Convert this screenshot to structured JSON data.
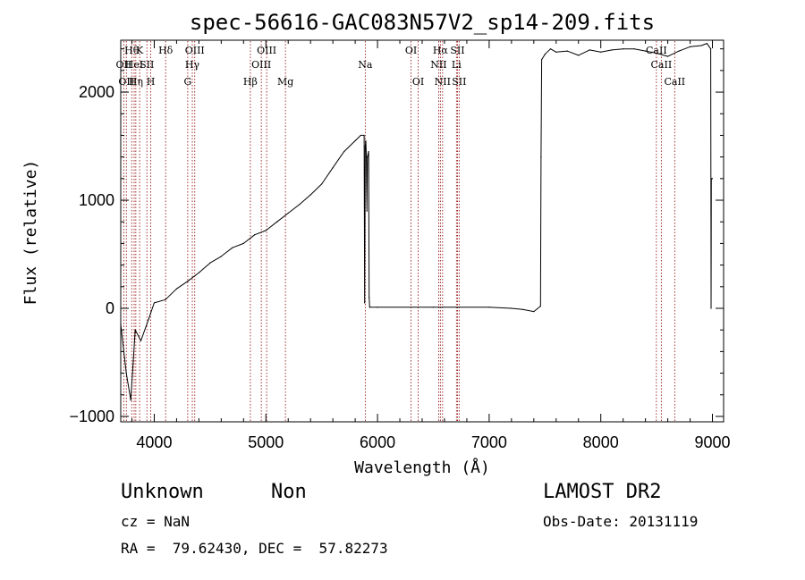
{
  "chart_data": {
    "type": "line",
    "title": "spec-56616-GAC083N57V2_sp14-209.fits",
    "xlabel": "Wavelength (Å)",
    "ylabel": "Flux (relative)",
    "xlim": [
      3700,
      9100
    ],
    "ylim": [
      -1050,
      2480
    ],
    "xticks": [
      4000,
      5000,
      6000,
      7000,
      8000,
      9000
    ],
    "yticks": [
      -1000,
      0,
      1000,
      2000
    ],
    "xtick_labels": [
      "4000",
      "5000",
      "6000",
      "7000",
      "8000",
      "9000"
    ],
    "ytick_labels": [
      "−1000",
      "0",
      "1000",
      "2000"
    ],
    "series": [
      {
        "color": "#000000",
        "points": [
          [
            3700,
            -150
          ],
          [
            3750,
            -600
          ],
          [
            3790,
            -850
          ],
          [
            3830,
            -200
          ],
          [
            3880,
            -300
          ],
          [
            3950,
            -100
          ],
          [
            4000,
            50
          ],
          [
            4100,
            80
          ],
          [
            4200,
            180
          ],
          [
            4300,
            250
          ],
          [
            4400,
            330
          ],
          [
            4500,
            420
          ],
          [
            4600,
            480
          ],
          [
            4700,
            560
          ],
          [
            4800,
            600
          ],
          [
            4900,
            680
          ],
          [
            5000,
            720
          ],
          [
            5100,
            800
          ],
          [
            5200,
            880
          ],
          [
            5300,
            960
          ],
          [
            5400,
            1050
          ],
          [
            5500,
            1150
          ],
          [
            5600,
            1300
          ],
          [
            5700,
            1450
          ],
          [
            5800,
            1550
          ],
          [
            5850,
            1600
          ],
          [
            5880,
            1600
          ],
          [
            5885,
            50
          ],
          [
            5890,
            1500
          ],
          [
            5895,
            1550
          ],
          [
            5900,
            1400
          ],
          [
            5905,
            900
          ],
          [
            5910,
            1400
          ],
          [
            5920,
            1450
          ],
          [
            5925,
            100
          ],
          [
            5930,
            10
          ],
          [
            6000,
            10
          ],
          [
            6500,
            10
          ],
          [
            7000,
            10
          ],
          [
            7200,
            0
          ],
          [
            7300,
            -10
          ],
          [
            7400,
            -30
          ],
          [
            7460,
            20
          ],
          [
            7465,
            1400
          ],
          [
            7470,
            2300
          ],
          [
            7500,
            2350
          ],
          [
            7550,
            2400
          ],
          [
            7600,
            2370
          ],
          [
            7700,
            2380
          ],
          [
            7800,
            2340
          ],
          [
            7900,
            2390
          ],
          [
            8000,
            2370
          ],
          [
            8100,
            2390
          ],
          [
            8200,
            2400
          ],
          [
            8300,
            2400
          ],
          [
            8400,
            2380
          ],
          [
            8500,
            2360
          ],
          [
            8600,
            2330
          ],
          [
            8700,
            2380
          ],
          [
            8800,
            2420
          ],
          [
            8900,
            2430
          ],
          [
            8950,
            2450
          ],
          [
            8985,
            2400
          ],
          [
            8988,
            0
          ],
          [
            8990,
            1200
          ],
          [
            9000,
            1200
          ]
        ]
      }
    ],
    "spectral_lines": [
      {
        "wavelength": 3727,
        "label": "OII",
        "row": 2
      },
      {
        "wavelength": 3750,
        "label": "OII",
        "row": 3
      },
      {
        "wavelength": 3798,
        "label": "Hθ",
        "row": 1
      },
      {
        "wavelength": 3820,
        "label": "HeI",
        "row": 2
      },
      {
        "wavelength": 3835,
        "label": "Hη",
        "row": 3
      },
      {
        "wavelength": 3869,
        "label": "K",
        "row": 1
      },
      {
        "wavelength": 3934,
        "label": "SII",
        "row": 2
      },
      {
        "wavelength": 3969,
        "label": "H",
        "row": 3
      },
      {
        "wavelength": 4102,
        "label": "Hδ",
        "row": 1
      },
      {
        "wavelength": 4300,
        "label": "G",
        "row": 3
      },
      {
        "wavelength": 4341,
        "label": "Hγ",
        "row": 2
      },
      {
        "wavelength": 4363,
        "label": "OIII",
        "row": 1
      },
      {
        "wavelength": 4861,
        "label": "Hβ",
        "row": 3
      },
      {
        "wavelength": 4959,
        "label": "OIII",
        "row": 2
      },
      {
        "wavelength": 5007,
        "label": "OIII",
        "row": 1
      },
      {
        "wavelength": 5175,
        "label": "Mg",
        "row": 3
      },
      {
        "wavelength": 5890,
        "label": "Na",
        "row": 2
      },
      {
        "wavelength": 6300,
        "label": "OI",
        "row": 1
      },
      {
        "wavelength": 6364,
        "label": "OI",
        "row": 3
      },
      {
        "wavelength": 6548,
        "label": "NII",
        "row": 2
      },
      {
        "wavelength": 6563,
        "label": "Hα",
        "row": 1
      },
      {
        "wavelength": 6583,
        "label": "NII",
        "row": 3
      },
      {
        "wavelength": 6707,
        "label": "Li",
        "row": 2
      },
      {
        "wavelength": 6716,
        "label": "SII",
        "row": 1
      },
      {
        "wavelength": 6731,
        "label": "SII",
        "row": 3
      },
      {
        "wavelength": 8498,
        "label": "CaII",
        "row": 1
      },
      {
        "wavelength": 8542,
        "label": "CaII",
        "row": 2
      },
      {
        "wavelength": 8662,
        "label": "CaII",
        "row": 3
      }
    ],
    "line_marker_color": "#8b0000",
    "grid": false
  },
  "info": {
    "object_class": "Unknown",
    "subclass": "Non",
    "survey": "LAMOST DR2",
    "cz": "cz = NaN",
    "obs_date": "Obs-Date: 20131119",
    "coords": "RA =  79.62430, DEC =  57.82273"
  }
}
